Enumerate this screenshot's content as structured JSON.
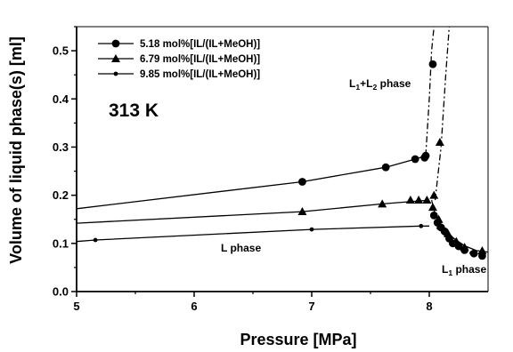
{
  "chart_data": {
    "type": "scatter",
    "xlabel": "Pressure [MPa]",
    "ylabel": "Volume of liquid phase(s) [ml]",
    "xlim": [
      5.0,
      8.5
    ],
    "ylim": [
      0.0,
      0.55
    ],
    "x_ticks": [
      "5",
      "6",
      "7",
      "8"
    ],
    "y_ticks": [
      "0.0",
      "0.1",
      "0.2",
      "0.3",
      "0.4",
      "0.5"
    ],
    "grid": false,
    "legend_position": "top-left",
    "series": [
      {
        "name": "5.18 mol%[IL/(IL+MeOH)]",
        "marker": "circle-large",
        "points": [
          [
            6.92,
            0.228
          ],
          [
            7.63,
            0.258
          ],
          [
            7.88,
            0.275
          ],
          [
            7.96,
            0.278
          ],
          [
            7.97,
            0.282
          ],
          [
            8.03,
            0.472
          ]
        ],
        "curve": [
          [
            5.0,
            0.172
          ],
          [
            6.92,
            0.228
          ],
          [
            7.63,
            0.258
          ],
          [
            7.88,
            0.275
          ],
          [
            7.97,
            0.282
          ]
        ]
      },
      {
        "name": "6.79 mol%[IL/(IL+MeOH)]",
        "marker": "triangle",
        "points": [
          [
            6.92,
            0.166
          ],
          [
            7.6,
            0.182
          ],
          [
            7.84,
            0.19
          ],
          [
            7.91,
            0.19
          ],
          [
            7.98,
            0.19
          ],
          [
            8.04,
            0.2
          ],
          [
            8.09,
            0.31
          ]
        ],
        "curve": [
          [
            5.0,
            0.142
          ],
          [
            6.92,
            0.166
          ],
          [
            7.6,
            0.182
          ],
          [
            8.0,
            0.19
          ]
        ]
      },
      {
        "name": "9.85 mol%[IL/(IL+MeOH)]",
        "marker": "circle-small",
        "points": [
          [
            5.16,
            0.107
          ],
          [
            7.0,
            0.129
          ],
          [
            7.93,
            0.136
          ]
        ],
        "curve": [
          [
            5.0,
            0.104
          ],
          [
            5.16,
            0.107
          ],
          [
            7.0,
            0.129
          ],
          [
            7.93,
            0.136
          ],
          [
            8.0,
            0.136
          ]
        ]
      }
    ],
    "l1_branch": {
      "curve": [
        [
          8.02,
          0.19
        ],
        [
          8.05,
          0.16
        ],
        [
          8.1,
          0.137
        ],
        [
          8.2,
          0.112
        ],
        [
          8.3,
          0.095
        ],
        [
          8.4,
          0.085
        ],
        [
          8.5,
          0.082
        ]
      ],
      "circles": [
        [
          8.04,
          0.158
        ],
        [
          8.07,
          0.143
        ],
        [
          8.1,
          0.133
        ],
        [
          8.13,
          0.125
        ],
        [
          8.17,
          0.11
        ],
        [
          8.2,
          0.1
        ],
        [
          8.25,
          0.094
        ],
        [
          8.3,
          0.086
        ],
        [
          8.38,
          0.079
        ],
        [
          8.45,
          0.074
        ]
      ],
      "triangles": [
        [
          8.03,
          0.175
        ],
        [
          8.08,
          0.15
        ],
        [
          8.16,
          0.12
        ],
        [
          8.23,
          0.104
        ],
        [
          8.3,
          0.092
        ],
        [
          8.45,
          0.085
        ]
      ],
      "small_circles": [
        [
          8.08,
          0.132
        ],
        [
          8.14,
          0.118
        ],
        [
          8.2,
          0.102
        ],
        [
          8.28,
          0.088
        ],
        [
          8.36,
          0.08
        ]
      ]
    },
    "phase_boundary_lines": [
      [
        [
          7.97,
          0.282
        ],
        [
          8.0,
          0.4
        ],
        [
          8.02,
          0.5
        ],
        [
          8.04,
          0.55
        ]
      ],
      [
        [
          8.05,
          0.19
        ],
        [
          8.1,
          0.3
        ],
        [
          8.14,
          0.45
        ],
        [
          8.17,
          0.55
        ]
      ]
    ],
    "annotations": {
      "temperature": "313 K",
      "l1l2_phase": {
        "main": "L",
        "sub1": "1",
        "plus": "+L",
        "sub2": "2",
        "rest": " phase"
      },
      "l_phase": "L phase",
      "l1_phase": {
        "main": "L",
        "sub": "1",
        "rest": " phase"
      }
    }
  }
}
